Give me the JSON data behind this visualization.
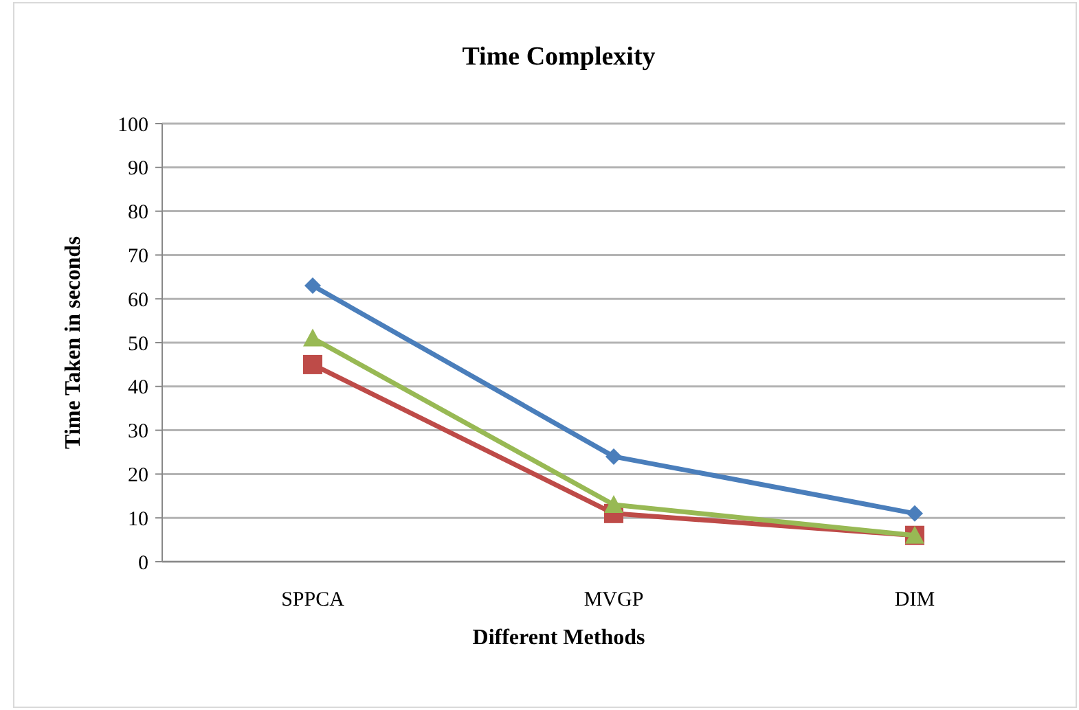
{
  "chart_data": {
    "type": "line",
    "title": "Time Complexity",
    "xlabel": "Different Methods",
    "ylabel": "Time Taken in seconds",
    "categories": [
      "SPPCA",
      "MVGP",
      "DIM"
    ],
    "series": [
      {
        "color": "#4a7ebb",
        "marker": "diamond",
        "values": [
          63,
          24,
          11
        ]
      },
      {
        "color": "#be4b48",
        "marker": "square",
        "values": [
          45,
          11,
          6
        ]
      },
      {
        "color": "#98b954",
        "marker": "triangle",
        "values": [
          51,
          13,
          6
        ]
      }
    ],
    "ylim": [
      0,
      100
    ],
    "yticks": [
      0,
      10,
      20,
      30,
      40,
      50,
      60,
      70,
      80,
      90,
      100
    ],
    "grid": "y"
  }
}
